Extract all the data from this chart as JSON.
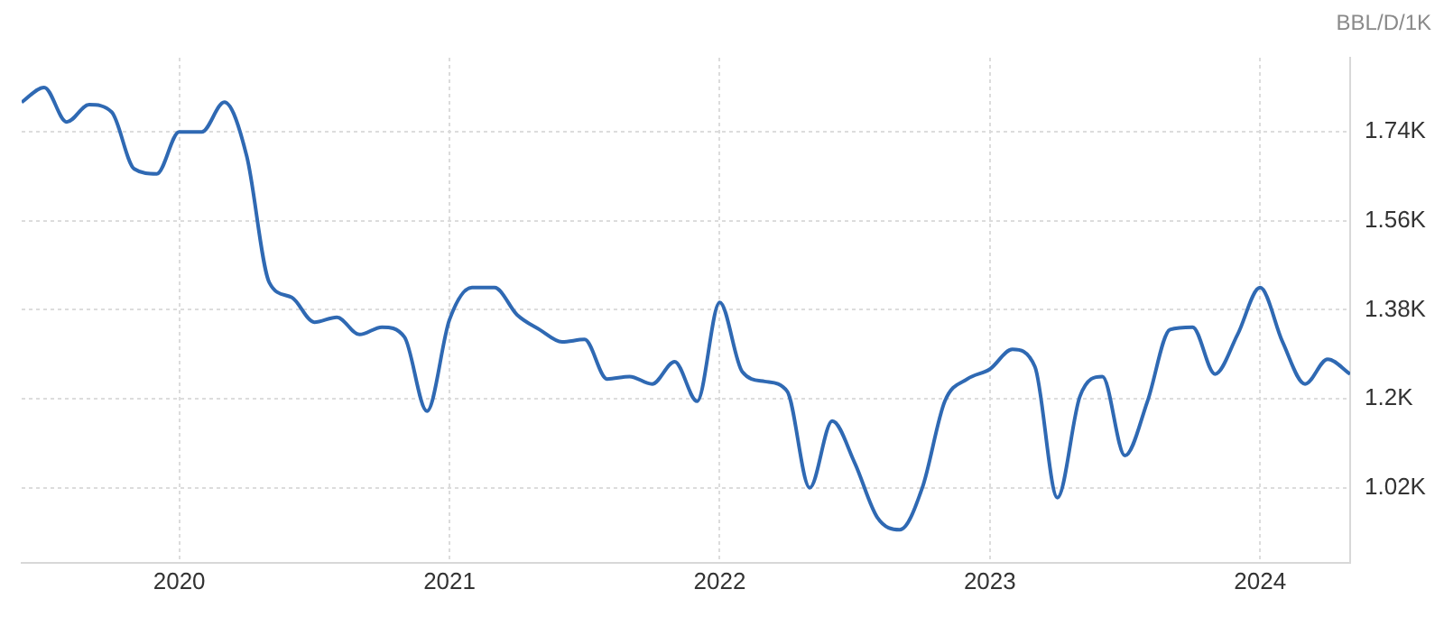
{
  "chart_data": {
    "type": "line",
    "ylabel": "BBL/D/1K",
    "x": [
      "2019-06",
      "2019-07",
      "2019-08",
      "2019-09",
      "2019-10",
      "2019-11",
      "2019-12",
      "2020-01",
      "2020-02",
      "2020-03",
      "2020-04",
      "2020-05",
      "2020-06",
      "2020-07",
      "2020-08",
      "2020-09",
      "2020-10",
      "2020-11",
      "2020-12",
      "2021-01",
      "2021-02",
      "2021-03",
      "2021-04",
      "2021-05",
      "2021-06",
      "2021-07",
      "2021-08",
      "2021-09",
      "2021-10",
      "2021-11",
      "2021-12",
      "2022-01",
      "2022-02",
      "2022-03",
      "2022-04",
      "2022-05",
      "2022-06",
      "2022-07",
      "2022-08",
      "2022-09",
      "2022-10",
      "2022-11",
      "2022-12",
      "2023-01",
      "2023-02",
      "2023-03",
      "2023-04",
      "2023-05",
      "2023-06",
      "2023-07",
      "2023-08",
      "2023-09",
      "2023-10",
      "2023-11",
      "2023-12",
      "2024-01",
      "2024-02",
      "2024-03",
      "2024-04",
      "2024-05"
    ],
    "series": [
      {
        "color": "#2f69b3",
        "values": [
          1800,
          1830,
          1760,
          1795,
          1780,
          1665,
          1655,
          1740,
          1740,
          1800,
          1690,
          1435,
          1405,
          1355,
          1365,
          1330,
          1345,
          1325,
          1175,
          1360,
          1425,
          1425,
          1370,
          1340,
          1315,
          1320,
          1240,
          1245,
          1230,
          1275,
          1195,
          1395,
          1255,
          1235,
          1215,
          1020,
          1155,
          1070,
          960,
          935,
          1020,
          1195,
          1240,
          1260,
          1300,
          1265,
          1000,
          1205,
          1245,
          1085,
          1195,
          1340,
          1345,
          1250,
          1330,
          1425,
          1315,
          1230,
          1280,
          1250
        ]
      }
    ],
    "xlim": [
      "2019-06",
      "2024-05"
    ],
    "xticks": [
      "2020",
      "2021",
      "2022",
      "2023",
      "2024"
    ],
    "ylim": [
      868,
      1890
    ],
    "yticks": [
      {
        "value": 1020,
        "label": "1.02K"
      },
      {
        "value": 1200,
        "label": "1.2K"
      },
      {
        "value": 1380,
        "label": "1.38K"
      },
      {
        "value": 1560,
        "label": "1.56K"
      },
      {
        "value": 1740,
        "label": "1.74K"
      }
    ],
    "grid": true,
    "legend": false,
    "marker": "none",
    "line_style": "solid"
  }
}
